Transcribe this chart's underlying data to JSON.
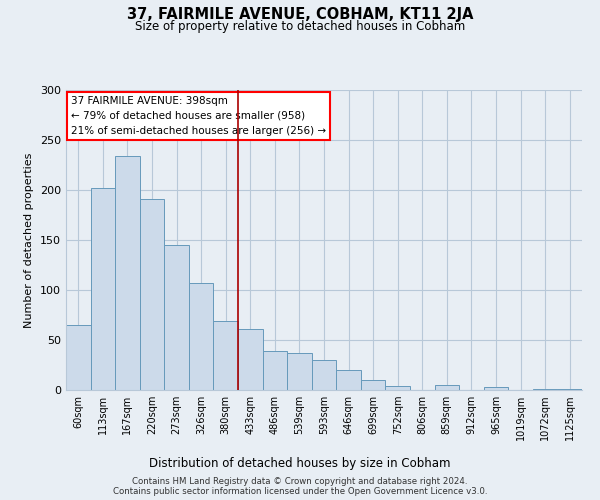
{
  "title": "37, FAIRMILE AVENUE, COBHAM, KT11 2JA",
  "subtitle": "Size of property relative to detached houses in Cobham",
  "xlabel": "Distribution of detached houses by size in Cobham",
  "ylabel": "Number of detached properties",
  "bar_labels": [
    "60sqm",
    "113sqm",
    "167sqm",
    "220sqm",
    "273sqm",
    "326sqm",
    "380sqm",
    "433sqm",
    "486sqm",
    "539sqm",
    "593sqm",
    "646sqm",
    "699sqm",
    "752sqm",
    "806sqm",
    "859sqm",
    "912sqm",
    "965sqm",
    "1019sqm",
    "1072sqm",
    "1125sqm"
  ],
  "bar_values": [
    65,
    202,
    234,
    191,
    145,
    107,
    69,
    61,
    39,
    37,
    30,
    20,
    10,
    4,
    0,
    5,
    0,
    3,
    0,
    1,
    1
  ],
  "bar_color": "#ccdaea",
  "bar_edge_color": "#6699bb",
  "vline_x_index": 6,
  "vline_color": "#aa0000",
  "annotation_title": "37 FAIRMILE AVENUE: 398sqm",
  "annotation_line1": "← 79% of detached houses are smaller (958)",
  "annotation_line2": "21% of semi-detached houses are larger (256) →",
  "ylim": [
    0,
    300
  ],
  "yticks": [
    0,
    50,
    100,
    150,
    200,
    250,
    300
  ],
  "footer1": "Contains HM Land Registry data © Crown copyright and database right 2024.",
  "footer2": "Contains public sector information licensed under the Open Government Licence v3.0.",
  "bg_color": "#e8eef4",
  "plot_bg_color": "#e8eef4",
  "grid_color": "#b8c8d8"
}
